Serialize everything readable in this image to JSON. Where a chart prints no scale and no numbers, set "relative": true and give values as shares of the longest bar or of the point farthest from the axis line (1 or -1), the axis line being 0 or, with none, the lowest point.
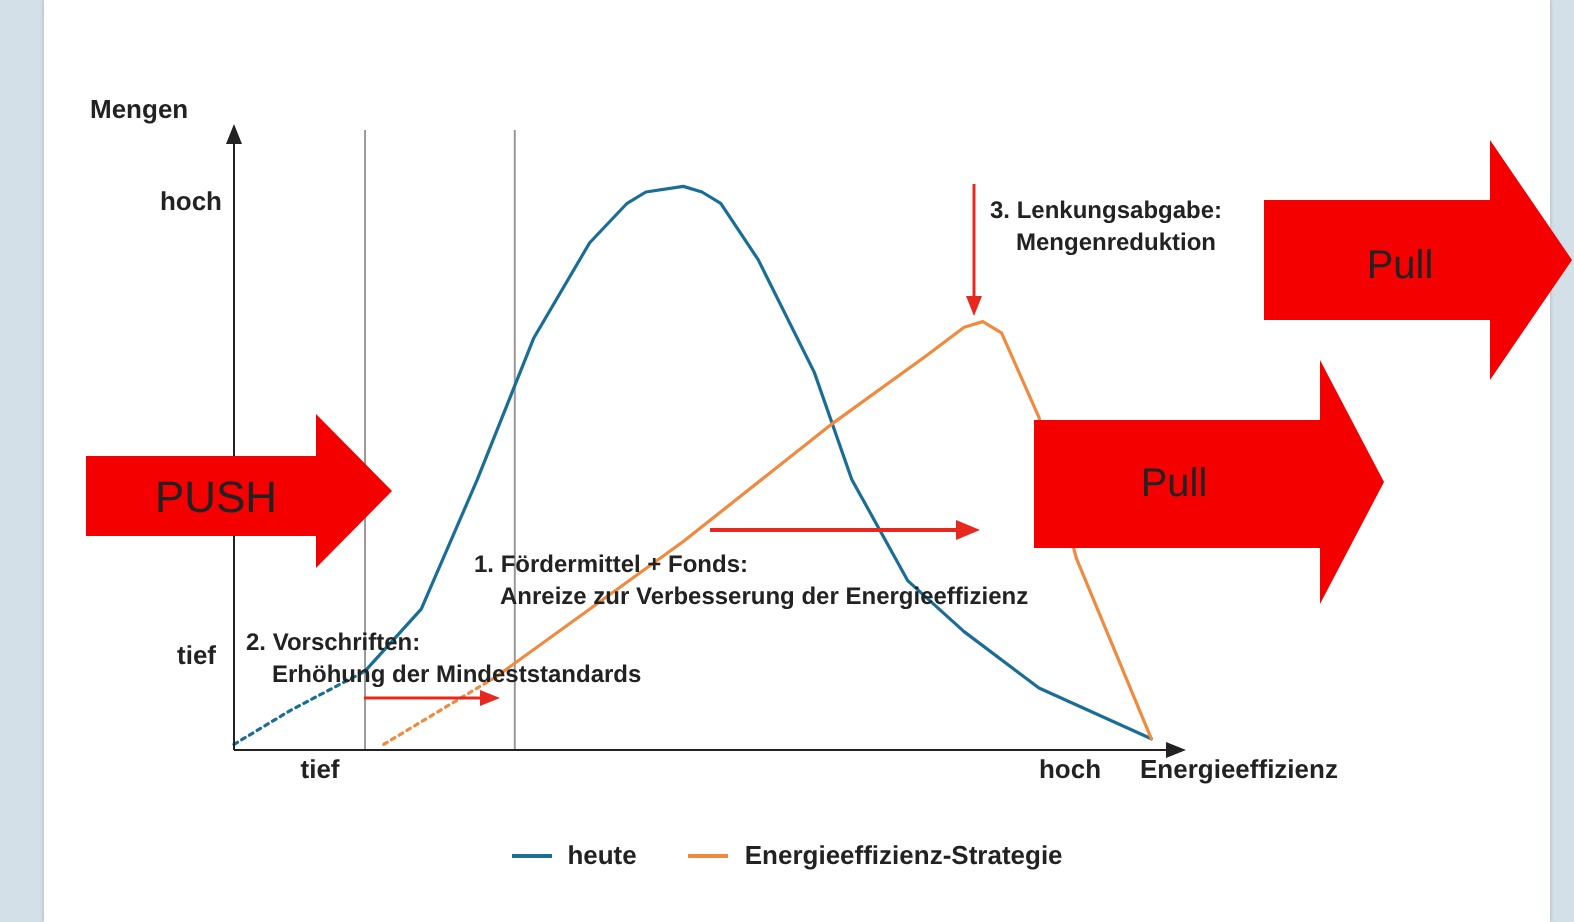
{
  "chart_data": {
    "type": "line",
    "relative": true,
    "ylabel": "Mengen",
    "xlabel": "Energieeffizienz",
    "categories": [
      null,
      null,
      null,
      null,
      null,
      null,
      null,
      null,
      null,
      null,
      null,
      null,
      null,
      null,
      null,
      null,
      null,
      null,
      null,
      null,
      null,
      null,
      null,
      null,
      null,
      null,
      null,
      null,
      null,
      null,
      null,
      null,
      null,
      null,
      null,
      null,
      null,
      null,
      null,
      null,
      null,
      null,
      null,
      null,
      null,
      null,
      null,
      null,
      null,
      null,
      null
    ],
    "legend": "bottom",
    "marker": "none",
    "series": [
      {
        "color": "#1a6e96",
        "line_style": "dotted",
        "values": [
          0.01,
          null,
          null,
          0.07,
          null,
          null,
          null,
          0.14,
          null,
          null,
          null,
          null,
          null,
          null,
          null,
          null,
          null,
          null,
          null,
          null,
          null,
          null,
          null,
          null,
          null,
          null,
          null,
          null,
          null,
          null,
          null,
          null,
          null,
          null,
          null,
          null,
          null,
          null,
          null,
          null,
          null,
          null,
          null,
          null,
          null,
          null,
          null,
          null,
          null,
          null,
          null
        ]
      },
      {
        "name": "heute",
        "color": "#1a6e96",
        "line_style": "solid",
        "values": [
          null,
          null,
          null,
          null,
          null,
          null,
          null,
          0.14,
          null,
          null,
          0.25,
          null,
          null,
          0.48,
          null,
          null,
          0.73,
          null,
          null,
          0.9,
          null,
          0.97,
          0.99,
          null,
          1,
          0.99,
          0.97,
          null,
          0.87,
          null,
          null,
          0.67,
          null,
          0.48,
          null,
          null,
          0.3,
          null,
          null,
          0.21,
          null,
          null,
          null,
          0.11,
          null,
          null,
          null,
          null,
          null,
          0.02,
          null
        ]
      },
      {
        "color": "#f08a3e",
        "line_style": "dotted",
        "values": [
          null,
          null,
          null,
          null,
          null,
          null,
          null,
          null,
          0.01,
          null,
          null,
          0.07,
          null,
          null,
          0.13,
          null,
          null,
          null,
          null,
          null,
          null,
          null,
          null,
          null,
          null,
          null,
          null,
          null,
          null,
          null,
          null,
          null,
          null,
          null,
          null,
          null,
          null,
          null,
          null,
          null,
          null,
          null,
          null,
          null,
          null,
          null,
          null,
          null,
          null,
          null,
          null
        ]
      },
      {
        "name": "Energieeffizienz-Strategie",
        "color": "#f08a3e",
        "line_style": "solid",
        "values": [
          null,
          null,
          null,
          null,
          null,
          null,
          null,
          null,
          null,
          null,
          null,
          null,
          null,
          null,
          0.13,
          null,
          null,
          null,
          null,
          null,
          null,
          null,
          null,
          null,
          0.37,
          null,
          null,
          null,
          null,
          null,
          null,
          null,
          0.58,
          null,
          null,
          null,
          null,
          0.7,
          null,
          0.75,
          0.76,
          0.74,
          null,
          0.59,
          null,
          0.34,
          null,
          null,
          null,
          0.02,
          null
        ]
      }
    ],
    "annotations": [
      "PUSH",
      "Pull",
      "Pull",
      "1. Fördermittel + Fonds:\nAnreize zur Verbesserung der Energieeffizienz",
      "2. Vorschriften:\nErhöhung der Mindeststandards",
      "3. Lenkungsabgabe:\nMengenreduktion",
      "tief",
      "hoch",
      "tief",
      "hoch"
    ]
  }
}
